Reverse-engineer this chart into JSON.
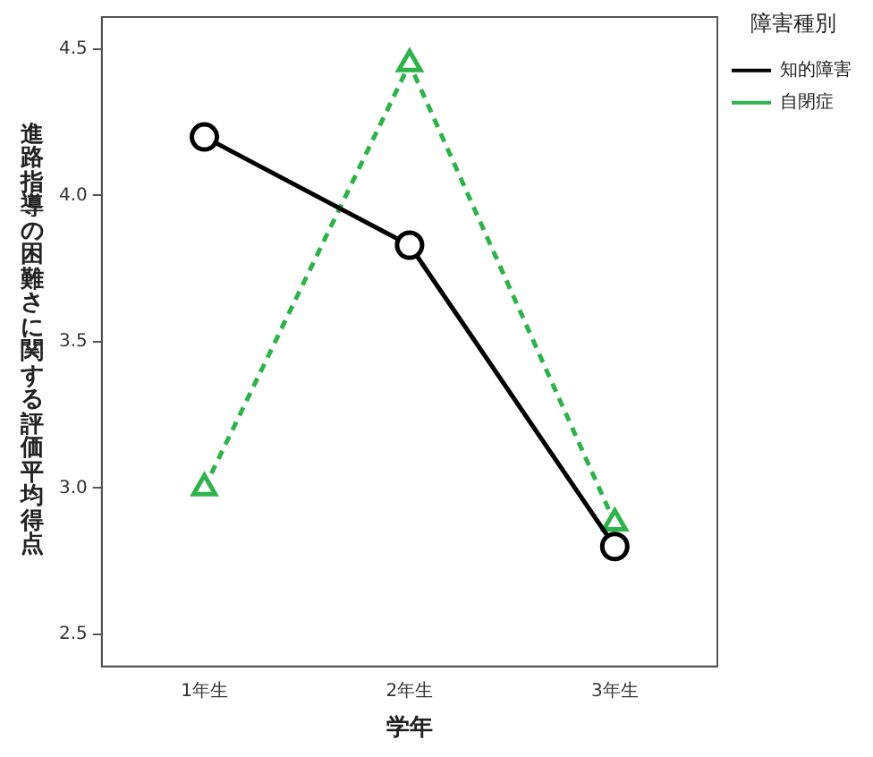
{
  "chart_data": {
    "type": "line",
    "xlabel": "学年",
    "ylabel": "進路指導の困難さに関する評価平均得点",
    "legend_title": "障害種別",
    "legend": "top right",
    "grid": false,
    "categories": [
      "1年生",
      "2年生",
      "3年生"
    ],
    "ylim": [
      2.39,
      4.61
    ],
    "yticks": [
      2.5,
      {
        "value": 3,
        "label": "3.0"
      },
      3.5,
      {
        "value": 4,
        "label": "4.0"
      },
      4.5
    ],
    "series": [
      {
        "name": "知的障害",
        "color": "#000000",
        "values": [
          4.2,
          3.83,
          2.8
        ],
        "marker": "circle",
        "line_style": "solid"
      },
      {
        "name": "自閉症",
        "color": "#2db34a",
        "values": [
          3.0,
          4.45,
          2.88
        ],
        "marker": "triangle",
        "line_style": "dashed"
      }
    ]
  }
}
